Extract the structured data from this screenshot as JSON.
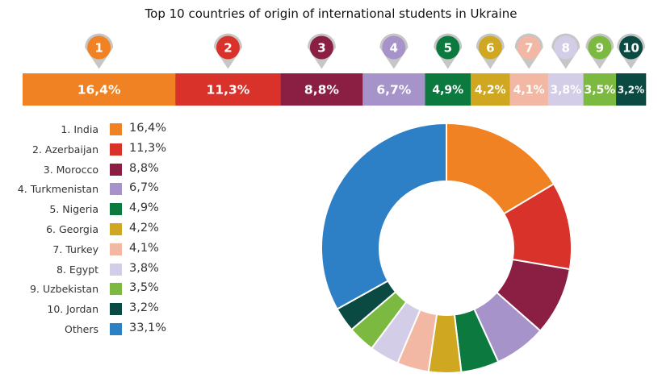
{
  "chart_data": {
    "type": "pie",
    "title": "Top 10 countries of origin of international students in Ukraine",
    "categories": [
      "1. India",
      "2. Azerbaijan",
      "3. Morocco",
      "4. Turkmenistan",
      "5. Nigeria",
      "6. Georgia",
      "7. Turkey",
      "8. Egypt",
      "9. Uzbekistan",
      "10. Jordan",
      "Others"
    ],
    "values": [
      16.4,
      11.3,
      8.8,
      6.7,
      4.9,
      4.2,
      4.1,
      3.8,
      3.5,
      3.2,
      33.1
    ],
    "value_labels": [
      "16,4%",
      "11,3%",
      "8,8%",
      "6,7%",
      "4,9%",
      "4,2%",
      "4,1%",
      "3,8%",
      "3,5%",
      "3,2%",
      "33,1%"
    ],
    "ranks": [
      "1",
      "2",
      "3",
      "4",
      "5",
      "6",
      "7",
      "8",
      "9",
      "10"
    ],
    "colors": [
      "#F08223",
      "#D9322B",
      "#8A1E43",
      "#A593C9",
      "#0C7A3E",
      "#CFA720",
      "#F3B8A4",
      "#D3CDE8",
      "#7CB940",
      "#0A4A43",
      "#2E80C6"
    ],
    "legend_position": "left"
  }
}
